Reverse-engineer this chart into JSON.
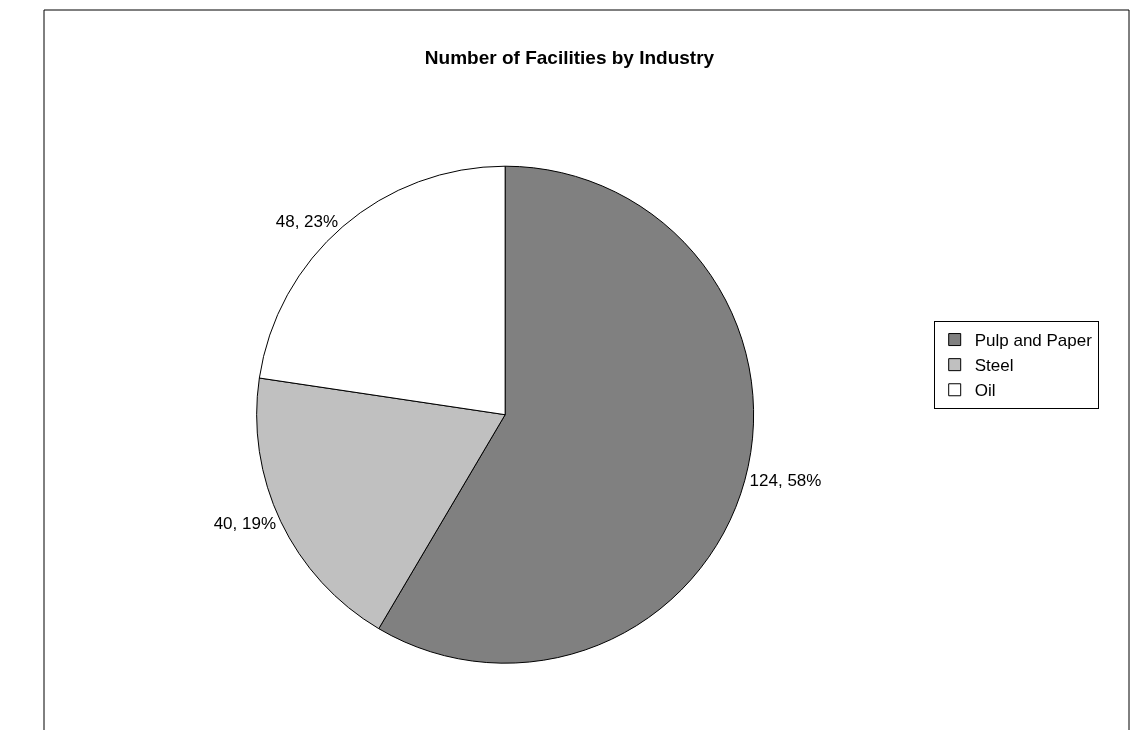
{
  "chart_data": {
    "type": "pie",
    "title": "Number of Facilities by Industry",
    "categories": [
      "Pulp and Paper",
      "Steel",
      "Oil"
    ],
    "values": [
      124,
      40,
      48
    ],
    "colors": [
      "#808080",
      "#c0c0c0",
      "#ffffff"
    ],
    "value_labels": [
      "124, 58%",
      "40, 19%",
      "48, 23%"
    ],
    "legend": "right"
  }
}
